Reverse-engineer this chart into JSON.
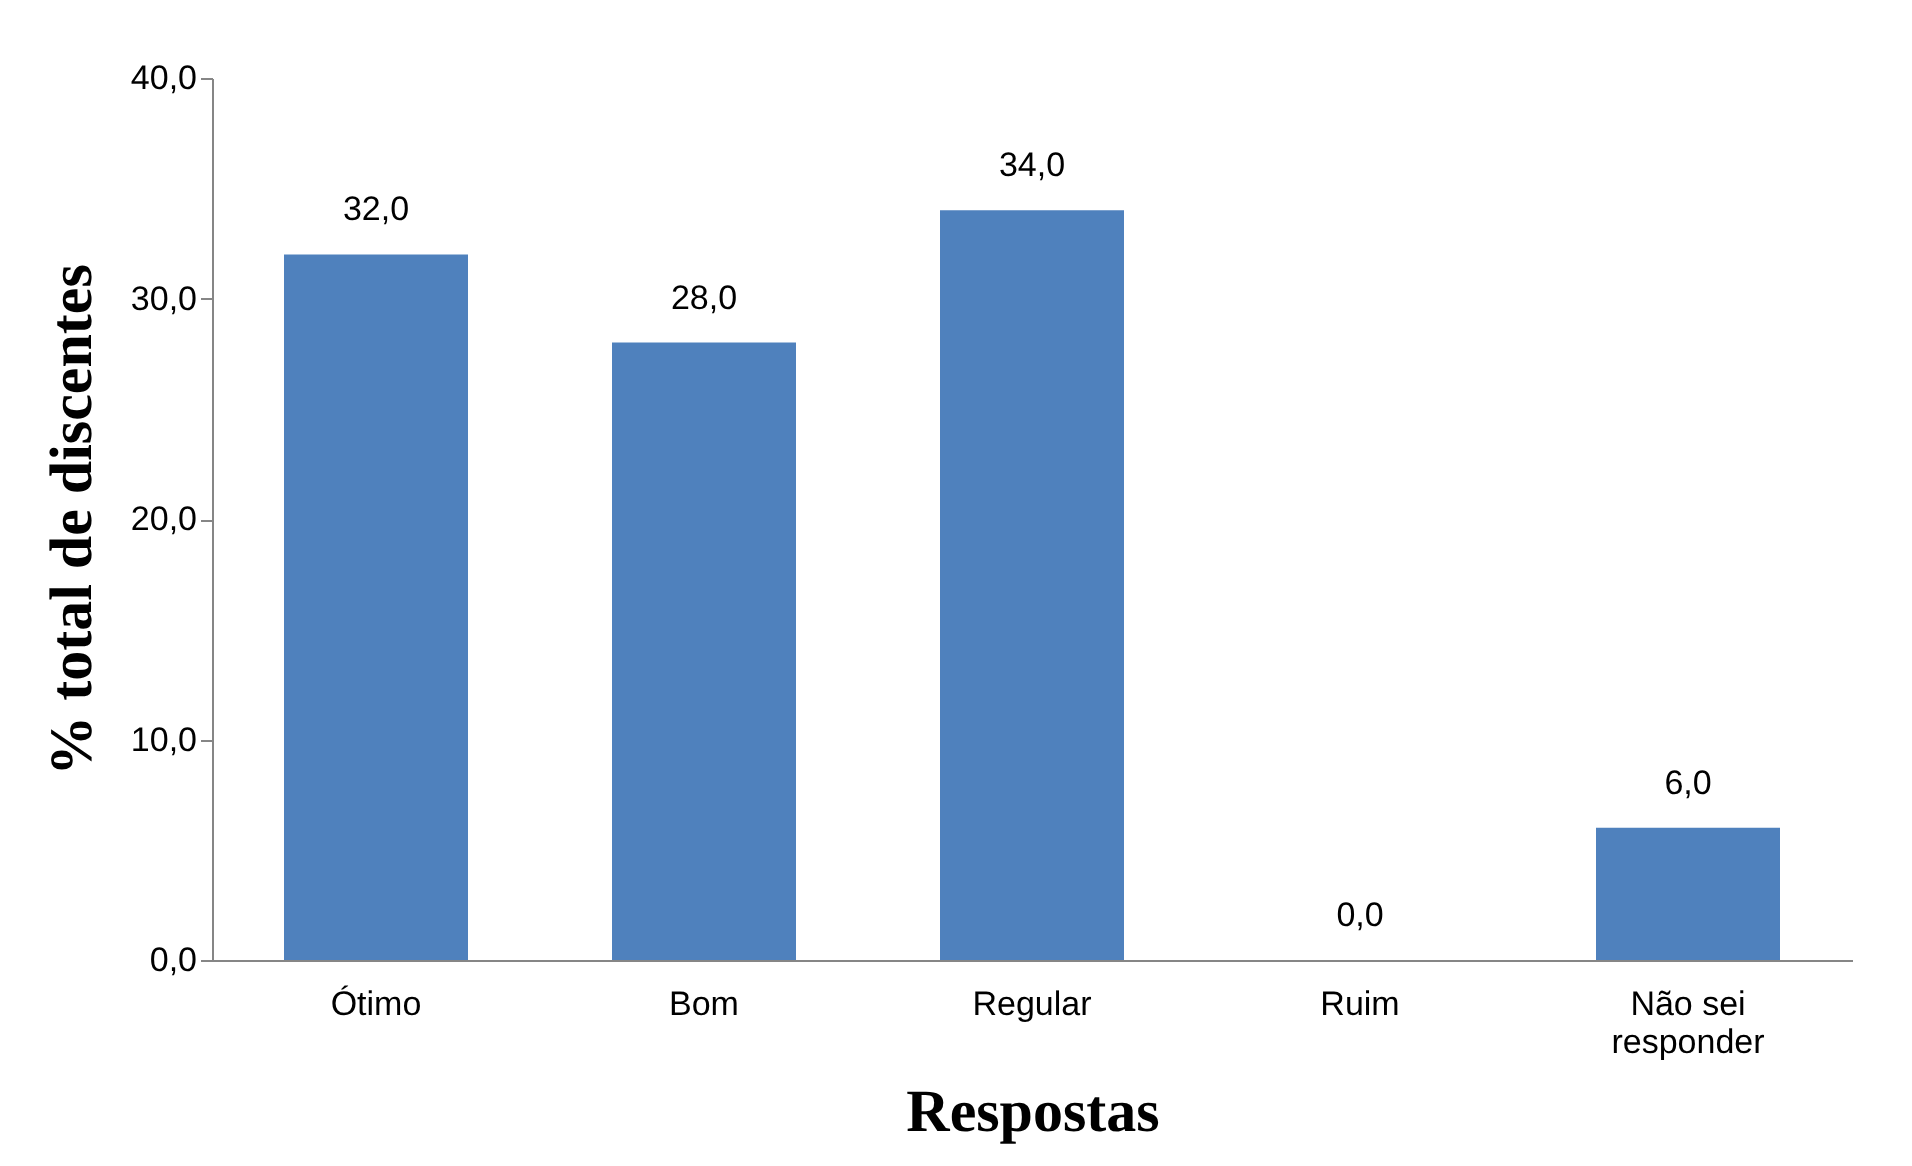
{
  "chart_data": {
    "type": "bar",
    "xlabel": "Respostas",
    "ylabel": "% total de discentes",
    "categories": [
      "Ótimo",
      "Bom",
      "Regular",
      "Ruim",
      "Não sei responder"
    ],
    "values": [
      32.0,
      28.0,
      34.0,
      0.0,
      6.0
    ],
    "value_labels": [
      "32,0",
      "28,0",
      "34,0",
      "0,0",
      "6,0"
    ],
    "color": "#4f81bd",
    "ylim": [
      0,
      40
    ],
    "yticks": [
      {
        "value": 0,
        "label": "0,0"
      },
      {
        "value": 10,
        "label": "10,0"
      },
      {
        "value": 20,
        "label": "20,0"
      },
      {
        "value": 30,
        "label": "30,0"
      },
      {
        "value": 40,
        "label": "40,0"
      }
    ],
    "grid": false
  }
}
